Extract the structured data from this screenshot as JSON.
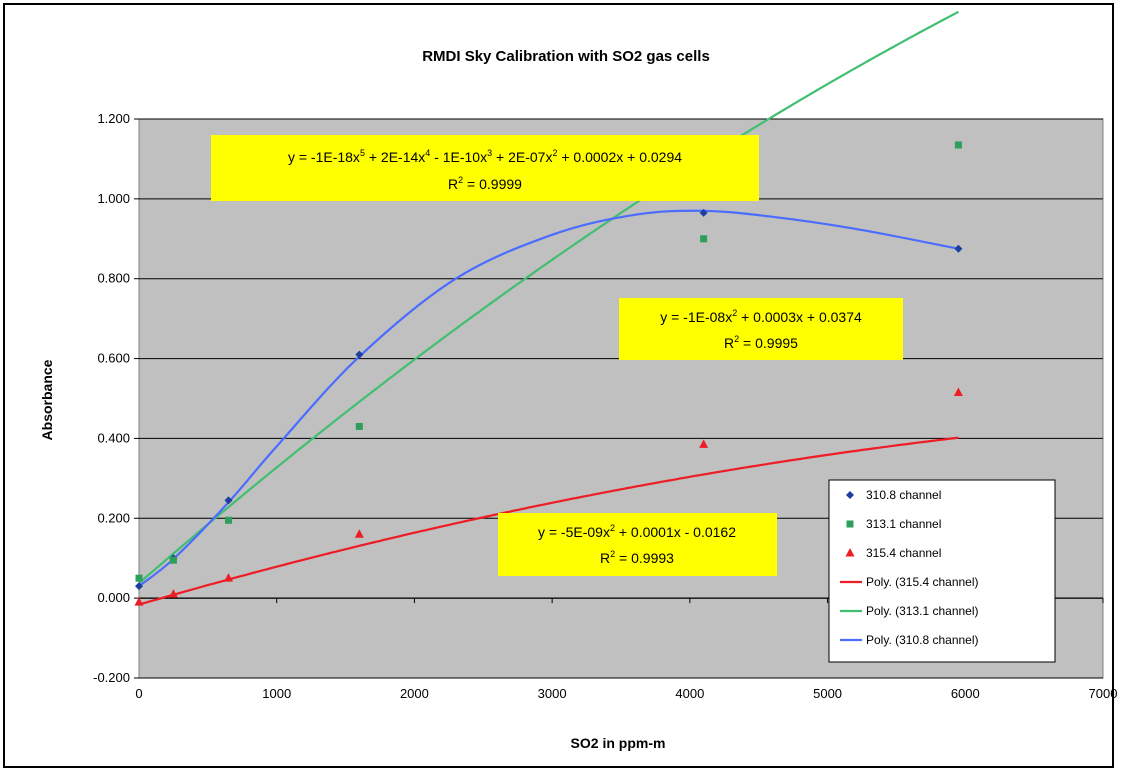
{
  "chart_data": {
    "type": "scatter",
    "title": "RMDI Sky Calibration with SO2 gas cells",
    "xlabel": "SO2 in ppm-m",
    "ylabel": "Absorbance",
    "xlim": [
      0,
      7000
    ],
    "ylim": [
      -0.2,
      1.2
    ],
    "x_ticks": [
      "0",
      "1000",
      "2000",
      "3000",
      "4000",
      "5000",
      "6000",
      "7000"
    ],
    "y_ticks": [
      "-0.200",
      "0.000",
      "0.200",
      "0.400",
      "0.600",
      "0.800",
      "1.000",
      "1.200"
    ],
    "grid": "horizontal",
    "legend_position": "bottom-right",
    "series": [
      {
        "name": "310.8 channel",
        "marker": "diamond",
        "color": "#1f3f9f",
        "x": [
          0,
          250,
          650,
          1600,
          4100,
          5950
        ],
        "y": [
          0.03,
          0.1,
          0.245,
          0.61,
          0.965,
          0.875
        ]
      },
      {
        "name": "313.1 channel",
        "marker": "square",
        "color": "#2e9e5b",
        "x": [
          0,
          250,
          650,
          1600,
          4100,
          5950
        ],
        "y": [
          0.05,
          0.095,
          0.195,
          0.43,
          0.9,
          1.135
        ]
      },
      {
        "name": "315.4 channel",
        "marker": "triangle",
        "color": "#ee1c25",
        "x": [
          0,
          250,
          650,
          1600,
          4100,
          5950
        ],
        "y": [
          -0.01,
          0.01,
          0.05,
          0.16,
          0.385,
          0.515
        ]
      }
    ],
    "trendlines": [
      {
        "name": "Poly. (315.4 channel)",
        "color": "#ee1c25",
        "coef": [
          -0.0162,
          0.0001,
          -5e-09
        ]
      },
      {
        "name": "Poly. (313.1 channel)",
        "color": "#3fbf6f",
        "coef": [
          0.0374,
          0.0003,
          -1e-08
        ]
      },
      {
        "name": "Poly. (310.8 channel)",
        "color": "#4a6cff",
        "points": [
          [
            0,
            0.03
          ],
          [
            250,
            0.098
          ],
          [
            650,
            0.24
          ],
          [
            1000,
            0.38
          ],
          [
            1600,
            0.605
          ],
          [
            2300,
            0.8
          ],
          [
            3000,
            0.91
          ],
          [
            3600,
            0.96
          ],
          [
            4100,
            0.97
          ],
          [
            4600,
            0.955
          ],
          [
            5200,
            0.925
          ],
          [
            5950,
            0.875
          ]
        ]
      }
    ],
    "annotations": [
      {
        "id": "eq-310",
        "line1": "y = -1E-18x",
        "sup1": "5",
        "part2": " + 2E-14x",
        "sup2": "4",
        "part3": " - 1E-10x",
        "sup3": "3",
        "part4": " + 2E-07x",
        "sup4": "2",
        "part5": " + 0.0002x + 0.0294",
        "r2_prefix": "R",
        "r2_sup": "2",
        "r2_value": " = 0.9999"
      },
      {
        "id": "eq-313",
        "line1": "y = -1E-08x",
        "sup1": "2",
        "part2": " + 0.0003x + 0.0374",
        "r2_prefix": "R",
        "r2_sup": "2",
        "r2_value": " = 0.9995"
      },
      {
        "id": "eq-315",
        "line1": "y = -5E-09x",
        "sup1": "2",
        "part2": " + 0.0001x - 0.0162",
        "r2_prefix": "R",
        "r2_sup": "2",
        "r2_value": " = 0.9993"
      }
    ],
    "legend": [
      "310.8 channel",
      "313.1 channel",
      "315.4 channel",
      "Poly. (315.4 channel)",
      "Poly. (313.1 channel)",
      "Poly. (310.8 channel)"
    ]
  }
}
